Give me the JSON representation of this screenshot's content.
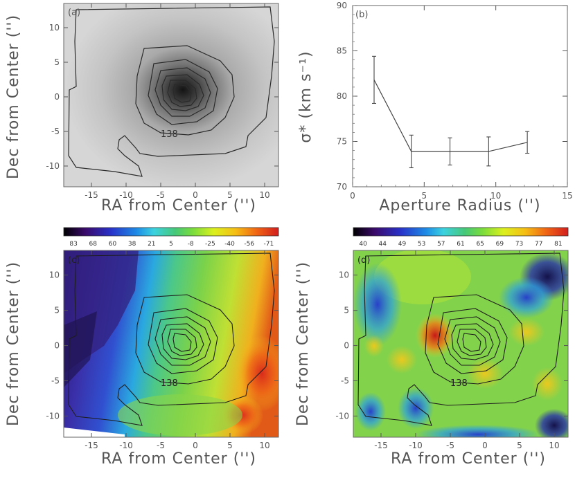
{
  "chart_data": [
    {
      "panel": "(a)",
      "type": "heatmap",
      "description_colormap": "grayscale",
      "xlabel": "RA from Center ('')",
      "ylabel": "Dec from Center ('')",
      "xticks": [
        -15,
        -10,
        -5,
        0,
        5,
        10
      ],
      "yticks": [
        -10,
        -5,
        0,
        5,
        10
      ],
      "xlim": [
        -19,
        12
      ],
      "ylim": [
        -13,
        13.5
      ],
      "contour_label": "138",
      "peak": [
        -1.5,
        0.5
      ]
    },
    {
      "panel": "(b)",
      "type": "line",
      "xlabel": "Aperture Radius ('')",
      "ylabel": "σ* (km s⁻¹)",
      "xlim": [
        0,
        15
      ],
      "ylim": [
        70,
        90
      ],
      "xticks": [
        0,
        5,
        10,
        15
      ],
      "yticks": [
        70,
        75,
        80,
        85,
        90
      ],
      "series": [
        {
          "name": "sigma",
          "x": [
            1.5,
            4.1,
            6.8,
            9.5,
            12.2
          ],
          "y": [
            81.8,
            73.9,
            73.9,
            73.9,
            74.9
          ],
          "err": [
            2.6,
            1.8,
            1.5,
            1.6,
            1.2
          ]
        }
      ]
    },
    {
      "panel": "(c)",
      "type": "heatmap",
      "description_colormap": "velocity",
      "colorbar_ticks": [
        "83",
        "68",
        "60",
        "38",
        "21",
        "5",
        "-8",
        "-25",
        "-40",
        "-56",
        "-71"
      ],
      "xlabel": "RA from Center ('')",
      "ylabel": "Dec from Center ('')",
      "xticks": [
        -15,
        -10,
        -5,
        0,
        5,
        10
      ],
      "yticks": [
        -10,
        -5,
        0,
        5,
        10
      ],
      "xlim": [
        -19,
        12
      ],
      "ylim": [
        -13,
        13.5
      ],
      "contour_label": "138"
    },
    {
      "panel": "(d)",
      "type": "heatmap",
      "description_colormap": "velocity dispersion",
      "colorbar_ticks": [
        "40",
        "44",
        "49",
        "53",
        "57",
        "61",
        "65",
        "69",
        "73",
        "77",
        "81"
      ],
      "xlabel": "RA from Center ('')",
      "ylabel": "Dec from Center ('')",
      "xticks": [
        -15,
        -10,
        -5,
        0,
        5,
        10
      ],
      "yticks": [
        -10,
        -5,
        0,
        5,
        10
      ],
      "xlim": [
        -19,
        12
      ],
      "ylim": [
        -13,
        13.5
      ],
      "contour_label": "138"
    }
  ],
  "colors": {
    "axis": "#555555",
    "contour": "#2a2a2a"
  }
}
